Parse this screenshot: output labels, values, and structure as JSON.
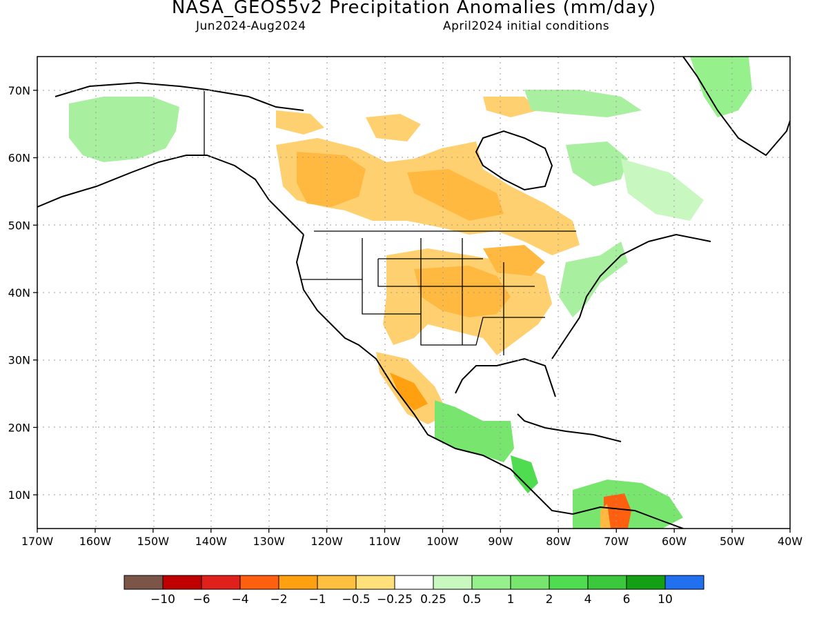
{
  "header": {
    "title": "NASA_GEOS5v2 Precipitation Anomalies (mm/day)",
    "period": "Jun2024-Aug2024",
    "init": "April2024 initial conditions"
  },
  "axes": {
    "lon_labels": [
      "170W",
      "160W",
      "150W",
      "140W",
      "130W",
      "120W",
      "110W",
      "100W",
      "90W",
      "80W",
      "70W",
      "60W",
      "50W",
      "40W"
    ],
    "lat_labels": [
      "10N",
      "20N",
      "30N",
      "40N",
      "50N",
      "60N",
      "70N"
    ],
    "lon_range": [
      -170,
      -40
    ],
    "lat_range": [
      5,
      75
    ]
  },
  "colorbar": {
    "labels": [
      "-10",
      "-6",
      "-4",
      "-2",
      "-1",
      "-0.5",
      "-0.25",
      "0.25",
      "0.5",
      "1",
      "2",
      "4",
      "6",
      "10"
    ],
    "colors": [
      "#7a5548",
      "#c00000",
      "#e0201a",
      "#ff6010",
      "#ffa010",
      "#ffc040",
      "#ffe07a",
      "#ffffff",
      "#c8f8c0",
      "#96f08c",
      "#78e66e",
      "#50dc50",
      "#3cc83c",
      "#14a014",
      "#2070f0"
    ]
  }
}
